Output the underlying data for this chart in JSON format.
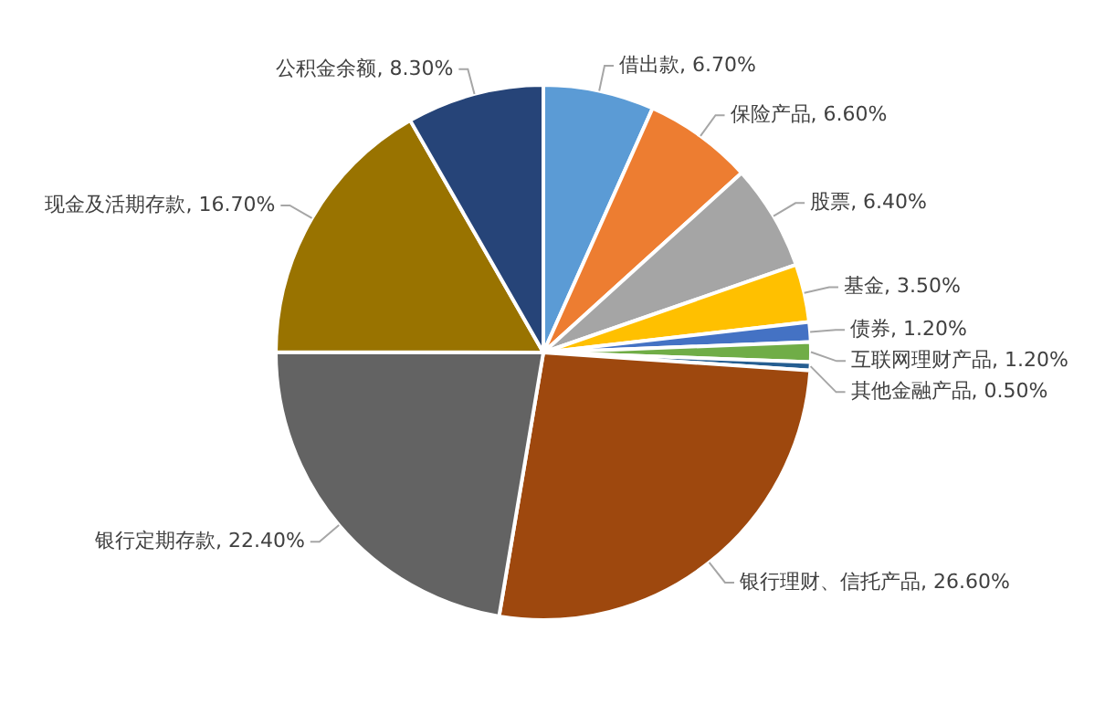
{
  "chart_data": {
    "type": "pie",
    "categories": [
      "借出款",
      "保险产品",
      "股票",
      "基金",
      "债券",
      "互联网理财产品",
      "其他金融产品",
      "银行理财、信托产品",
      "银行定期存款",
      "现金及活期存款",
      "公积金余额"
    ],
    "values": [
      6.7,
      6.6,
      6.4,
      3.5,
      1.2,
      1.2,
      0.5,
      26.6,
      22.4,
      16.7,
      8.3
    ],
    "value_labels": [
      "6.70%",
      "6.60%",
      "6.40%",
      "3.50%",
      "1.20%",
      "1.20%",
      "0.50%",
      "26.60%",
      "22.40%",
      "16.70%",
      "8.30%"
    ],
    "colors": [
      "#5b9bd5",
      "#ed7d31",
      "#a5a5a5",
      "#ffc000",
      "#4472c4",
      "#70ad47",
      "#255e91",
      "#9e480e",
      "#636363",
      "#997300",
      "#264478"
    ],
    "legend": false
  }
}
